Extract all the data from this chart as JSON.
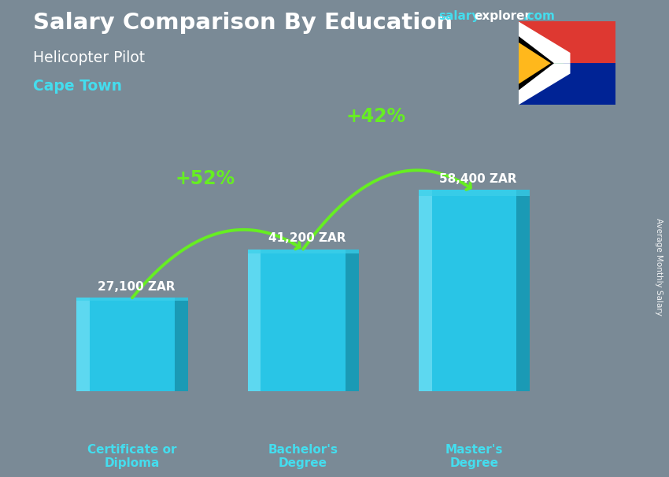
{
  "title_main": "Salary Comparison By Education",
  "title_sub": "Helicopter Pilot",
  "city": "Cape Town",
  "ylabel": "Average Monthly Salary",
  "categories": [
    "Certificate or\nDiploma",
    "Bachelor's\nDegree",
    "Master's\nDegree"
  ],
  "values": [
    27100,
    41200,
    58400
  ],
  "value_labels": [
    "27,100 ZAR",
    "41,200 ZAR",
    "58,400 ZAR"
  ],
  "pct_labels": [
    "+52%",
    "+42%"
  ],
  "bar_color_face": "#29c5e6",
  "bar_color_left": "#5dd8f0",
  "bar_color_right": "#1a9ab5",
  "bar_color_top": "#3dd0ea",
  "background_color": "#7a8a96",
  "title_color": "#ffffff",
  "subtitle_color": "#ffffff",
  "city_color": "#44ddee",
  "value_label_color": "#ffffff",
  "pct_color": "#99ee00",
  "xtick_color": "#44ddee",
  "arrow_color": "#66ee22",
  "salary_color": "#44ddee",
  "explorer_color": "#ffffff",
  "dot_com_color": "#44ddee",
  "x_positions": [
    1,
    3,
    5
  ],
  "bar_width": 1.3,
  "ylim": [
    0,
    72000
  ],
  "value_label_offsets": [
    1500,
    1500,
    1500
  ]
}
